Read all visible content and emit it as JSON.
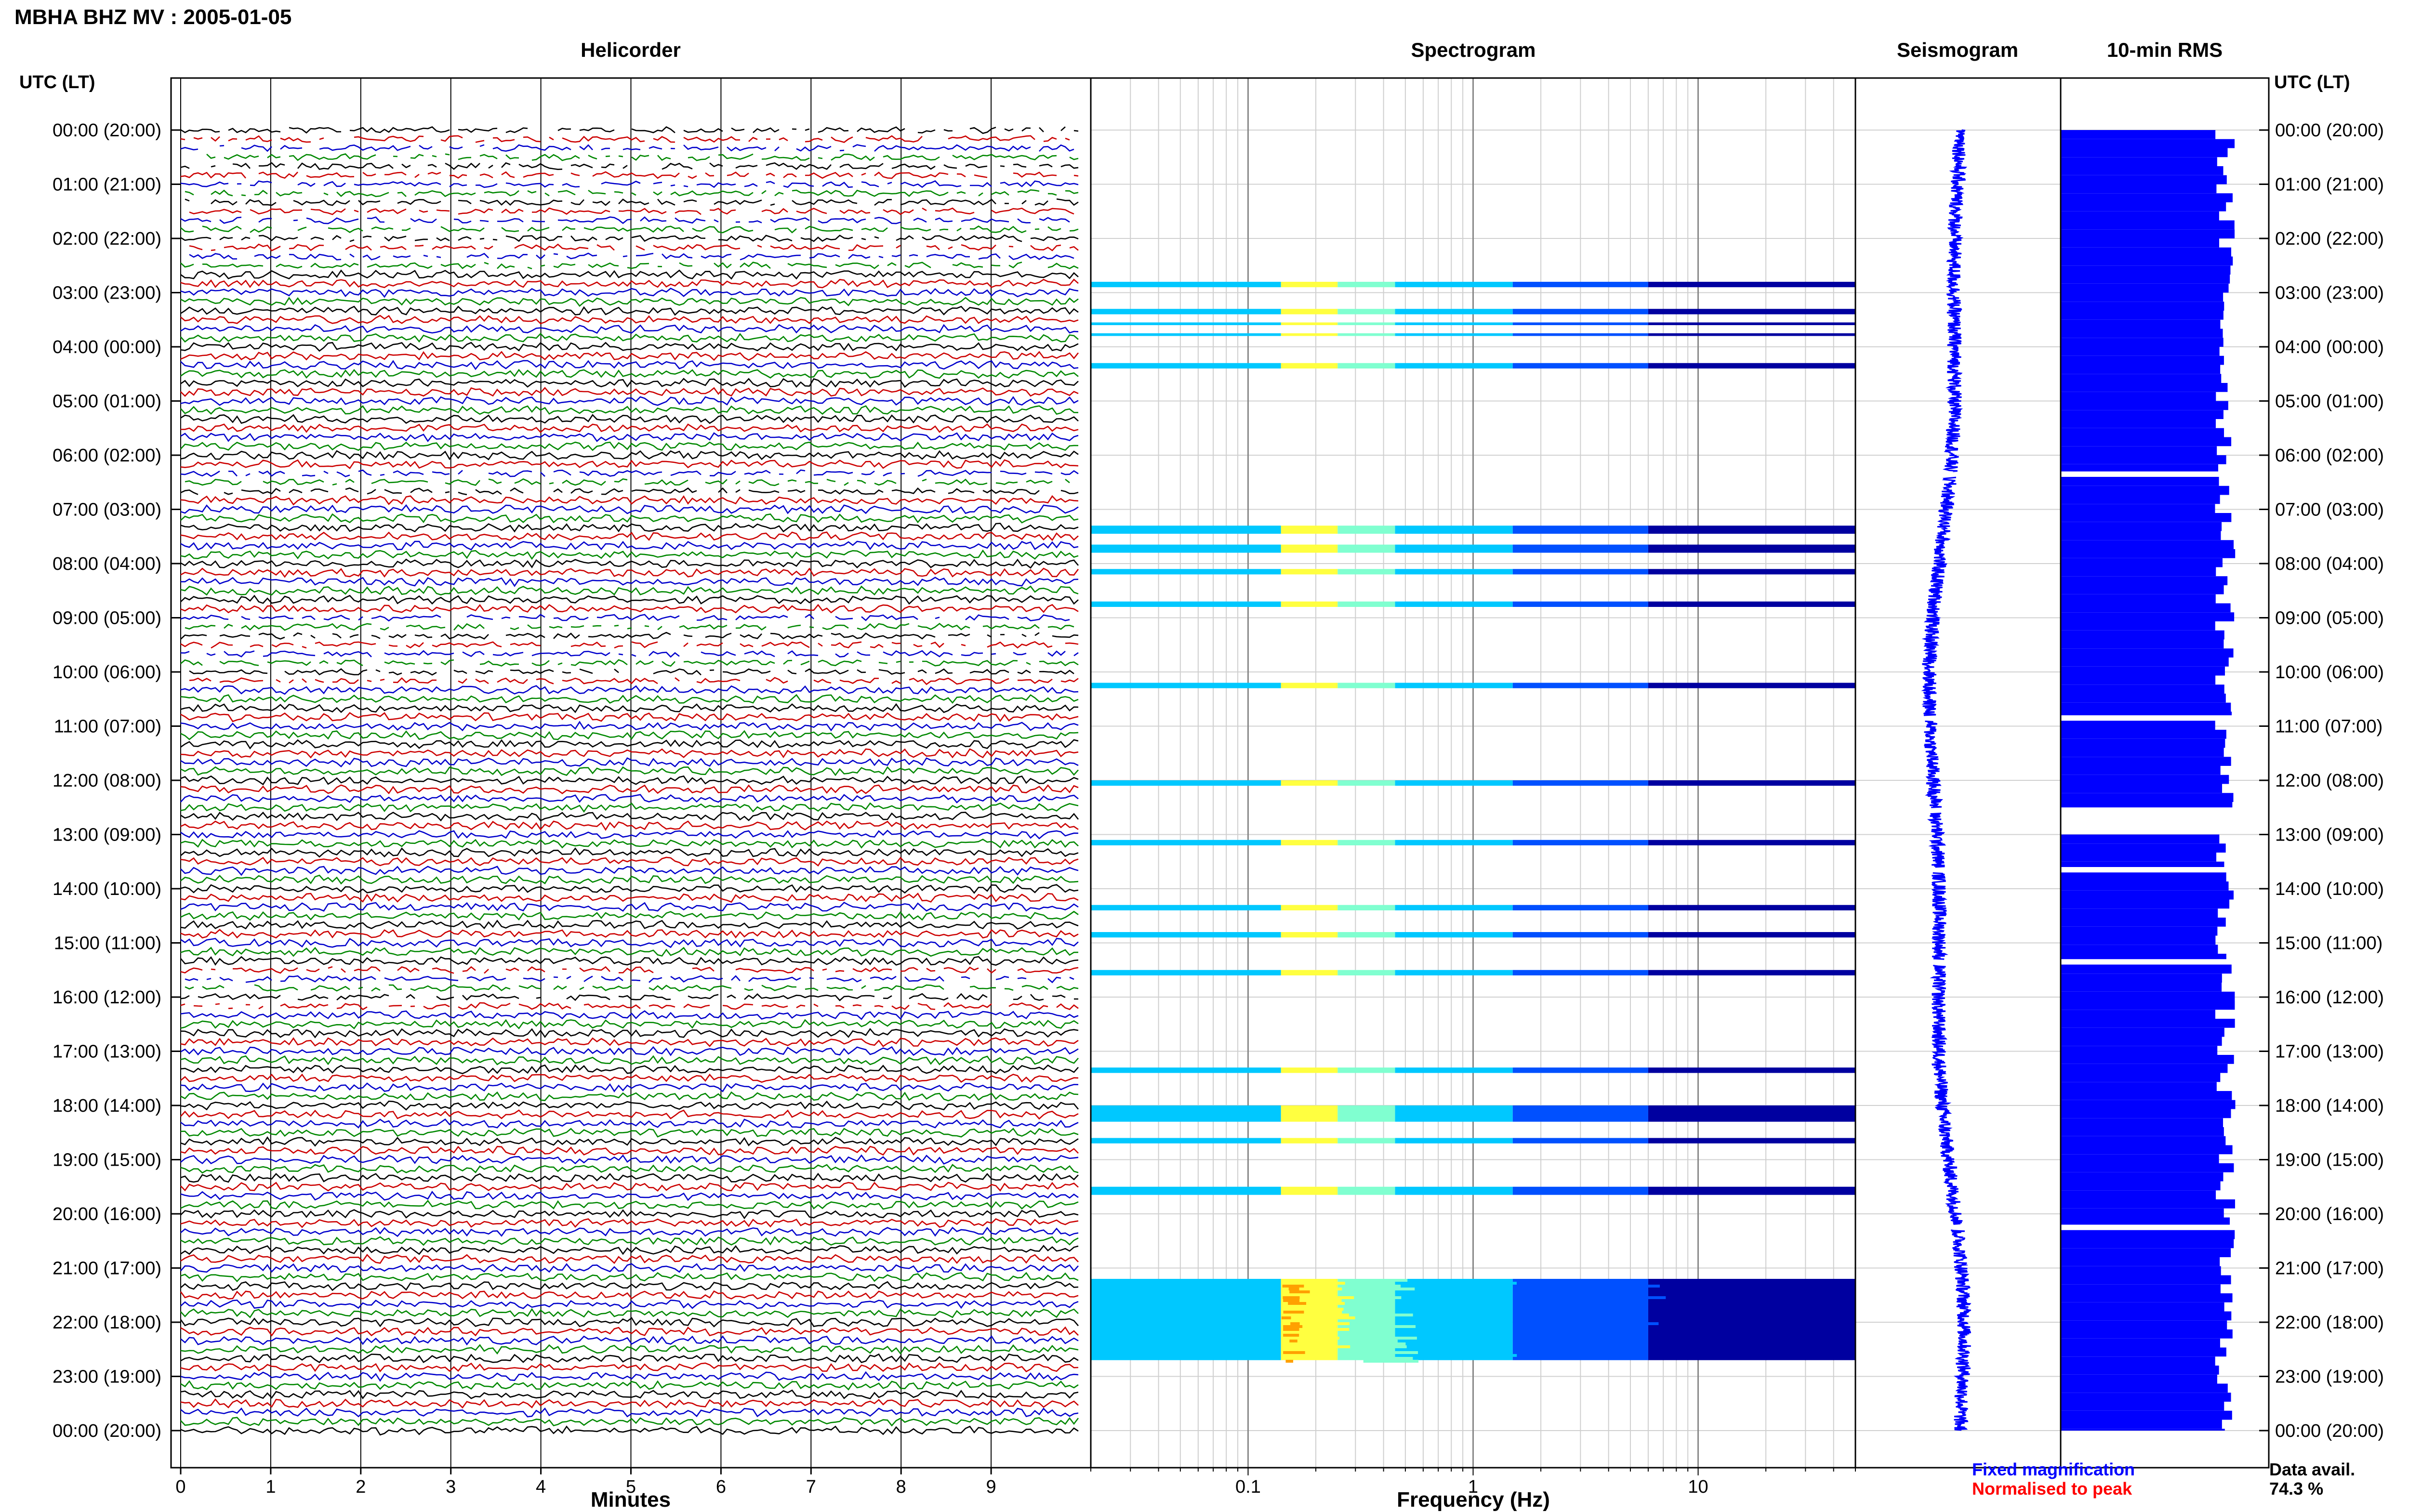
{
  "header": {
    "title": "MBHA BHZ MV : 2005-01-05",
    "utc_label_left": "UTC (LT)",
    "utc_label_right": "UTC (LT)"
  },
  "panels": {
    "helicorder": "Helicorder",
    "spectrogram": "Spectrogram",
    "seismogram": "Seismogram",
    "rms": "10-min RMS"
  },
  "footer": {
    "fixed_magnification": "Fixed magnification",
    "normalised_to_peak": "Normalised to peak",
    "data_avail_label": "Data avail.",
    "data_avail_value": "74.3 %"
  },
  "colors": {
    "trace_colors": [
      "#000000",
      "#cc0000",
      "#0000cc",
      "#008800"
    ],
    "fixed_magnification": "#0000ff",
    "normalised_to_peak": "#ff0000",
    "seismogram": "#0000ff",
    "rms_bars": "#0000ff",
    "spectrogram_palette": [
      "#0000a0",
      "#0050ff",
      "#00c8ff",
      "#80ffd0",
      "#ffff40",
      "#ffa000"
    ]
  },
  "chart_data": [
    {
      "type": "line",
      "panel": "helicorder",
      "title": "Helicorder",
      "xlabel": "Minutes",
      "x_ticks": [
        0,
        1,
        2,
        3,
        4,
        5,
        6,
        7,
        8,
        9
      ],
      "xlim": [
        0,
        10
      ],
      "row_interval_minutes": 10,
      "rows": 145,
      "y_ticks": [
        "00:00 (20:00)",
        "01:00 (21:00)",
        "02:00 (22:00)",
        "03:00 (23:00)",
        "04:00 (00:00)",
        "05:00 (01:00)",
        "06:00 (02:00)",
        "07:00 (03:00)",
        "08:00 (04:00)",
        "09:00 (05:00)",
        "10:00 (06:00)",
        "11:00 (07:00)",
        "12:00 (08:00)",
        "13:00 (09:00)",
        "14:00 (10:00)",
        "15:00 (11:00)",
        "16:00 (12:00)",
        "17:00 (13:00)",
        "18:00 (14:00)",
        "19:00 (15:00)",
        "20:00 (16:00)",
        "21:00 (17:00)",
        "22:00 (18:00)",
        "23:00 (19:00)",
        "00:00 (20:00)"
      ],
      "trace_color_cycle": [
        "black",
        "red",
        "blue",
        "green"
      ]
    },
    {
      "type": "heatmap",
      "panel": "spectrogram",
      "title": "Spectrogram",
      "xlabel": "Frequency (Hz)",
      "x_scale": "log",
      "xlim": [
        0.02,
        50
      ],
      "x_tick_labels": [
        "0.1",
        "1",
        "10"
      ],
      "x_tick_values": [
        0.1,
        1,
        10
      ],
      "data_hour_bands": [
        [
          2.8,
          2.9
        ],
        [
          3.3,
          3.4
        ],
        [
          3.55,
          3.6
        ],
        [
          3.75,
          3.8
        ],
        [
          4.3,
          4.4
        ],
        [
          7.3,
          7.45
        ],
        [
          7.65,
          7.8
        ],
        [
          8.1,
          8.2
        ],
        [
          8.7,
          8.8
        ],
        [
          10.2,
          10.3
        ],
        [
          12.0,
          12.1
        ],
        [
          13.1,
          13.2
        ],
        [
          14.3,
          14.4
        ],
        [
          14.8,
          14.9
        ],
        [
          15.5,
          15.6
        ],
        [
          17.3,
          17.4
        ],
        [
          18.0,
          18.3
        ],
        [
          18.6,
          18.7
        ],
        [
          19.5,
          19.65
        ],
        [
          21.2,
          22.7
        ]
      ]
    },
    {
      "type": "line",
      "panel": "seismogram",
      "title": "Seismogram",
      "gaps_hours": [
        [
          6.3,
          6.4
        ],
        [
          10.8,
          10.9
        ],
        [
          12.5,
          12.6
        ],
        [
          13.6,
          13.7
        ],
        [
          15.3,
          15.4
        ],
        [
          20.2,
          20.3
        ]
      ]
    },
    {
      "type": "bar",
      "panel": "rms",
      "title": "10-min RMS",
      "segments_hours": [
        [
          0.0,
          6.3
        ],
        [
          6.4,
          10.8
        ],
        [
          10.9,
          12.5
        ],
        [
          13.0,
          13.6
        ],
        [
          13.7,
          15.3
        ],
        [
          15.4,
          20.2
        ],
        [
          20.3,
          24.0
        ]
      ],
      "relative_level": "approximately constant, 0.70 to 0.85 of panel width"
    }
  ]
}
